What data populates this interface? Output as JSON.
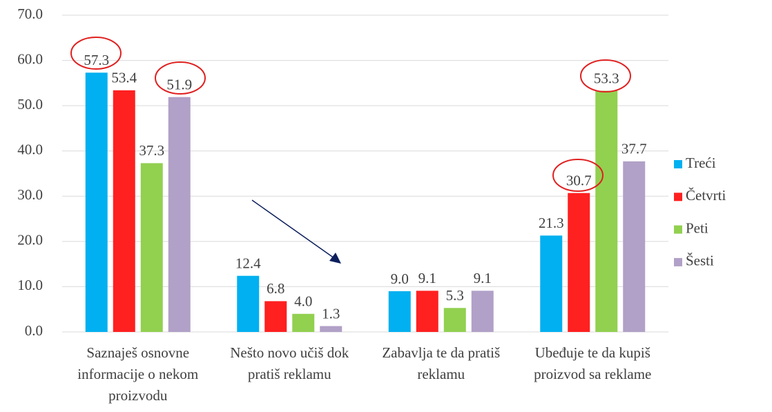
{
  "chart_data": {
    "type": "bar",
    "categories": [
      "Saznaješ osnovne informacije o nekom proizvodu",
      "Nešto novo učiš dok pratiš reklamu",
      "Zabavlja te da pratiš reklamu",
      "Ubeđuje te da kupiš proizvod sa reklame"
    ],
    "series": [
      {
        "name": "Treći",
        "color": "#00b0f0",
        "values": [
          57.3,
          12.4,
          9.0,
          21.3
        ],
        "value_labels": [
          "57.3",
          "12.4",
          "9.0",
          "21.3"
        ]
      },
      {
        "name": "Četvrti",
        "color": "#ff2020",
        "values": [
          53.4,
          6.8,
          9.1,
          30.7
        ],
        "value_labels": [
          "53.4",
          "6.8",
          "9.1",
          "30.7"
        ]
      },
      {
        "name": "Peti",
        "color": "#92d050",
        "values": [
          37.3,
          4.0,
          5.3,
          53.3
        ],
        "value_labels": [
          "37.3",
          "4.0",
          "5.3",
          "53.3"
        ]
      },
      {
        "name": "Šesti",
        "color": "#b1a0c7",
        "values": [
          51.9,
          1.3,
          9.1,
          37.7
        ],
        "value_labels": [
          "51.9",
          "1.3",
          "9.1",
          "37.7"
        ]
      }
    ],
    "ylim": [
      0,
      70
    ],
    "yticks": [
      {
        "value": 0,
        "label": "0.0"
      },
      {
        "value": 10,
        "label": "10.0"
      },
      {
        "value": 20,
        "label": "20.0"
      },
      {
        "value": 30,
        "label": "30.0"
      },
      {
        "value": 40,
        "label": "40.0"
      },
      {
        "value": 50,
        "label": "50.0"
      },
      {
        "value": 60,
        "label": "60.0"
      },
      {
        "value": 70,
        "label": "70.0"
      }
    ],
    "grid": true,
    "legend": "right"
  }
}
